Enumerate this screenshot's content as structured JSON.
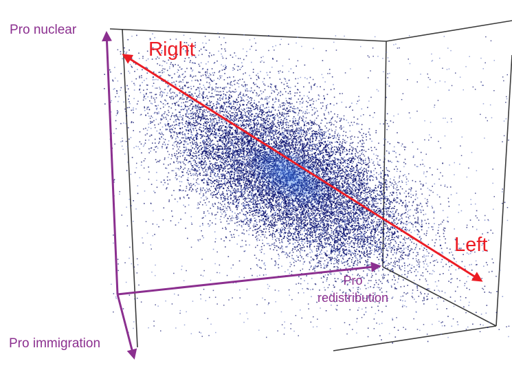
{
  "chart_data": {
    "type": "scatter",
    "projection": "3d",
    "title": "",
    "axes": {
      "vertical": "Pro nuclear",
      "depth": "Pro immigration",
      "horizontal_line1": "Pro",
      "horizontal_line2": "redistribution"
    },
    "direction_arrow": {
      "start_label": "Right",
      "end_label": "Left"
    },
    "point_cloud": {
      "shape": "elongated ellipsoid along the Right–Left arrow",
      "density": "high in centre, sparse toward edges",
      "approx_points": 14000
    },
    "legend": "none",
    "grid": false
  },
  "colors": {
    "axis": "#8b2f8f",
    "arrow": "#ec1c24",
    "box": "#3a3a3a",
    "points_dark": "#0a0f6b",
    "points_light": "#6f7fc6",
    "core": "#2d6be0"
  }
}
